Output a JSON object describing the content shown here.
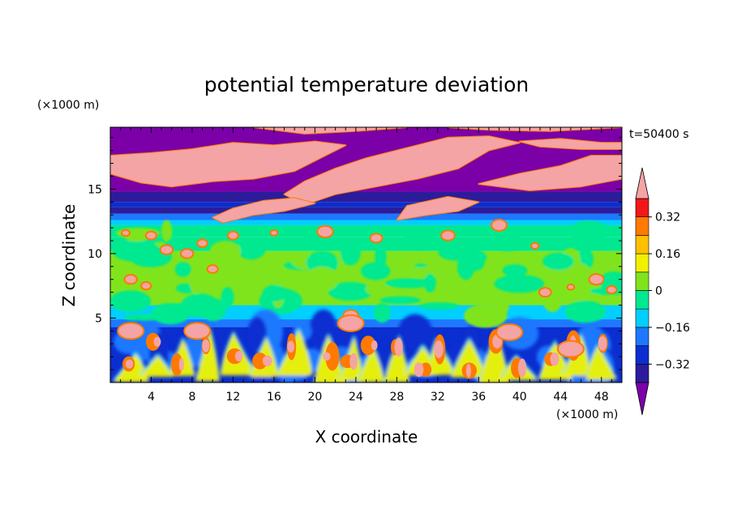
{
  "chart_data": {
    "type": "heatmap",
    "title": "potential temperature deviation",
    "xlabel": "X coordinate",
    "ylabel": "Z coordinate",
    "x_unit": "(×1000 m)",
    "y_unit": "(×1000 m)",
    "time_label": "t=50400 s",
    "xlim": [
      0,
      50
    ],
    "ylim": [
      0,
      19.8
    ],
    "x_ticks": [
      4,
      8,
      12,
      16,
      20,
      24,
      28,
      32,
      36,
      40,
      44,
      48
    ],
    "y_ticks": [
      5,
      10,
      15
    ],
    "colorbar": {
      "levels": [
        -0.48,
        -0.4,
        -0.32,
        -0.24,
        -0.16,
        -0.08,
        0,
        0.08,
        0.16,
        0.24,
        0.32,
        0.4,
        0.48
      ],
      "colors": [
        "#7b00a8",
        "#2c1c9c",
        "#0a2ed0",
        "#1e78ff",
        "#00cfff",
        "#00e890",
        "#7fe41c",
        "#f0f000",
        "#ffc000",
        "#ff7a00",
        "#f01818",
        "#f4a4a4"
      ],
      "tick_labels": [
        "-0.32",
        "-0.16",
        "0",
        "0.16",
        "0.32"
      ],
      "tick_values": [
        -0.32,
        -0.16,
        0,
        0.16,
        0.32
      ],
      "extend": "both"
    },
    "regions": [
      {
        "z_range": [
          0,
          4.5
        ],
        "description": "convective boundary layer with alternating warm and cold plumes"
      },
      {
        "z_range": [
          4.5,
          12.5
        ],
        "value_approx": 0.0
      },
      {
        "z_range": [
          12.5,
          14.8
        ],
        "value_approx": -0.35
      },
      {
        "z_range": [
          14.8,
          19.8
        ],
        "value_approx": "alternating >0.48 and <-0.48 bands"
      }
    ]
  }
}
